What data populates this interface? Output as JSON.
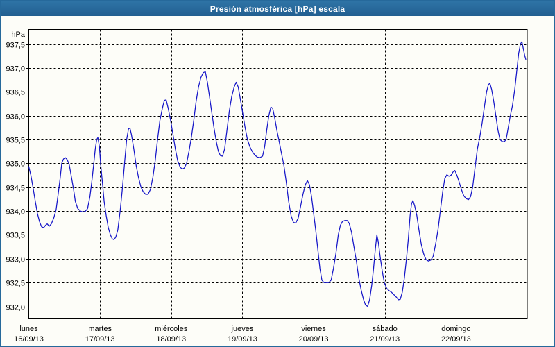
{
  "window": {
    "title": "Presión atmosférica [hPa] escala"
  },
  "colors": {
    "titlebar": "#26699b",
    "border": "#26699b",
    "line": "#1515c8",
    "grid": "#000000",
    "text": "#000000",
    "title_text": "#ffffff",
    "plot_bg": "#fdfdf8"
  },
  "chart_data": {
    "type": "line",
    "title": "Presión atmosférica [hPa] escala",
    "ylabel": "hPa",
    "y_unit_label": "hPa",
    "ylim": [
      931.76,
      937.81
    ],
    "x_range_hours": 168,
    "grid": true,
    "legend": "none",
    "y_ticks": [
      937.5,
      937.0,
      936.5,
      936.0,
      935.5,
      935.0,
      934.5,
      934.0,
      933.5,
      933.0,
      932.5,
      932.0
    ],
    "y_tick_labels": [
      "937,5",
      "937,0",
      "936,5",
      "936,0",
      "935,5",
      "935,0",
      "934,5",
      "934,0",
      "933,5",
      "933,0",
      "932,5",
      "932,0"
    ],
    "x_days": [
      {
        "name": "lunes",
        "date": "16/09/13"
      },
      {
        "name": "martes",
        "date": "17/09/13"
      },
      {
        "name": "miércoles",
        "date": "18/09/13"
      },
      {
        "name": "jueves",
        "date": "19/09/13"
      },
      {
        "name": "viernes",
        "date": "20/09/13"
      },
      {
        "name": "sábado",
        "date": "21/09/13"
      },
      {
        "name": "domingo",
        "date": "22/09/13"
      }
    ],
    "series": [
      {
        "name": "Presión atmosférica",
        "unit": "hPa",
        "points": [
          [
            0,
            934.93
          ],
          [
            0.7,
            934.75
          ],
          [
            1.4,
            934.5
          ],
          [
            2.2,
            934.2
          ],
          [
            2.9,
            933.95
          ],
          [
            3.6,
            933.78
          ],
          [
            4.3,
            933.67
          ],
          [
            5,
            933.65
          ],
          [
            5.6,
            933.7
          ],
          [
            6.2,
            933.73
          ],
          [
            6.9,
            933.68
          ],
          [
            7.6,
            933.73
          ],
          [
            8.4,
            933.85
          ],
          [
            9.2,
            934.02
          ],
          [
            9.9,
            934.35
          ],
          [
            10.6,
            934.7
          ],
          [
            11.1,
            935.0
          ],
          [
            11.7,
            935.09
          ],
          [
            12.3,
            935.12
          ],
          [
            12.9,
            935.08
          ],
          [
            13.6,
            934.98
          ],
          [
            14.4,
            934.7
          ],
          [
            15.1,
            934.45
          ],
          [
            15.7,
            934.2
          ],
          [
            16.5,
            934.05
          ],
          [
            17.4,
            934.0
          ],
          [
            18.2,
            933.98
          ],
          [
            19,
            933.99
          ],
          [
            19.8,
            934.05
          ],
          [
            20.6,
            934.3
          ],
          [
            21.3,
            934.65
          ],
          [
            21.9,
            935.0
          ],
          [
            22.4,
            935.3
          ],
          [
            22.9,
            935.5
          ],
          [
            23.3,
            935.54
          ],
          [
            23.8,
            935.35
          ],
          [
            24.2,
            935.0
          ],
          [
            24.8,
            934.6
          ],
          [
            25.4,
            934.2
          ],
          [
            26.1,
            933.9
          ],
          [
            26.8,
            933.65
          ],
          [
            27.5,
            933.5
          ],
          [
            28.1,
            933.42
          ],
          [
            28.7,
            933.4
          ],
          [
            29.3,
            933.45
          ],
          [
            30,
            933.6
          ],
          [
            30.8,
            934.0
          ],
          [
            31.6,
            934.5
          ],
          [
            32.4,
            935.1
          ],
          [
            33,
            935.5
          ],
          [
            33.6,
            935.72
          ],
          [
            34.1,
            935.74
          ],
          [
            34.6,
            935.6
          ],
          [
            35.4,
            935.3
          ],
          [
            36.2,
            934.95
          ],
          [
            37,
            934.7
          ],
          [
            37.8,
            934.5
          ],
          [
            38.6,
            934.4
          ],
          [
            39.4,
            934.35
          ],
          [
            40.2,
            934.35
          ],
          [
            41,
            934.45
          ],
          [
            41.8,
            934.7
          ],
          [
            42.6,
            935.05
          ],
          [
            43.4,
            935.5
          ],
          [
            44.2,
            935.9
          ],
          [
            45,
            936.15
          ],
          [
            45.7,
            936.32
          ],
          [
            46.3,
            936.33
          ],
          [
            47,
            936.15
          ],
          [
            47.8,
            935.9
          ],
          [
            48.6,
            935.6
          ],
          [
            49.4,
            935.3
          ],
          [
            50.2,
            935.05
          ],
          [
            51,
            934.92
          ],
          [
            51.7,
            934.88
          ],
          [
            52.4,
            934.9
          ],
          [
            53.2,
            935.0
          ],
          [
            54,
            935.25
          ],
          [
            54.8,
            935.55
          ],
          [
            55.6,
            935.9
          ],
          [
            56.4,
            936.3
          ],
          [
            57.2,
            936.6
          ],
          [
            58,
            936.8
          ],
          [
            58.8,
            936.9
          ],
          [
            59.5,
            936.92
          ],
          [
            60.2,
            936.7
          ],
          [
            60.9,
            936.4
          ],
          [
            61.6,
            936.1
          ],
          [
            62.4,
            935.75
          ],
          [
            63.2,
            935.45
          ],
          [
            63.9,
            935.25
          ],
          [
            64.6,
            935.16
          ],
          [
            65.3,
            935.15
          ],
          [
            66,
            935.3
          ],
          [
            66.8,
            935.7
          ],
          [
            67.6,
            936.1
          ],
          [
            68.4,
            936.4
          ],
          [
            69.2,
            936.6
          ],
          [
            69.9,
            936.7
          ],
          [
            70.6,
            936.6
          ],
          [
            71.3,
            936.35
          ],
          [
            72.1,
            936.05
          ],
          [
            72.9,
            935.75
          ],
          [
            73.7,
            935.5
          ],
          [
            74.5,
            935.35
          ],
          [
            75.3,
            935.25
          ],
          [
            76.1,
            935.18
          ],
          [
            77,
            935.13
          ],
          [
            77.9,
            935.12
          ],
          [
            78.8,
            935.15
          ],
          [
            79.5,
            935.35
          ],
          [
            80.2,
            935.7
          ],
          [
            80.9,
            936.0
          ],
          [
            81.6,
            936.18
          ],
          [
            82.2,
            936.15
          ],
          [
            82.9,
            935.95
          ],
          [
            83.6,
            935.7
          ],
          [
            84.4,
            935.45
          ],
          [
            85.2,
            935.2
          ],
          [
            86,
            934.95
          ],
          [
            86.8,
            934.6
          ],
          [
            87.6,
            934.2
          ],
          [
            88.4,
            933.9
          ],
          [
            89.2,
            933.76
          ],
          [
            90,
            933.75
          ],
          [
            90.8,
            933.85
          ],
          [
            91.6,
            934.1
          ],
          [
            92.4,
            934.35
          ],
          [
            93.2,
            934.55
          ],
          [
            93.9,
            934.64
          ],
          [
            94.6,
            934.55
          ],
          [
            95.3,
            934.3
          ],
          [
            96,
            933.95
          ],
          [
            96.7,
            933.6
          ],
          [
            97.4,
            933.2
          ],
          [
            98.1,
            932.8
          ],
          [
            98.8,
            932.55
          ],
          [
            99.5,
            932.5
          ],
          [
            100.3,
            932.5
          ],
          [
            101.1,
            932.5
          ],
          [
            101.9,
            932.55
          ],
          [
            102.7,
            932.8
          ],
          [
            103.5,
            933.1
          ],
          [
            104.3,
            933.5
          ],
          [
            105,
            933.7
          ],
          [
            105.7,
            933.78
          ],
          [
            106.5,
            933.8
          ],
          [
            107.3,
            933.8
          ],
          [
            108,
            933.74
          ],
          [
            108.8,
            933.55
          ],
          [
            109.6,
            933.25
          ],
          [
            110.4,
            932.95
          ],
          [
            111.2,
            932.6
          ],
          [
            112,
            932.35
          ],
          [
            112.8,
            932.15
          ],
          [
            113.5,
            932.03
          ],
          [
            114.2,
            932.0
          ],
          [
            114.9,
            932.15
          ],
          [
            115.6,
            932.45
          ],
          [
            116.2,
            932.8
          ],
          [
            116.8,
            933.2
          ],
          [
            117.3,
            933.5
          ],
          [
            117.8,
            933.35
          ],
          [
            118.4,
            933.05
          ],
          [
            119.1,
            932.75
          ],
          [
            119.8,
            932.5
          ],
          [
            120.6,
            932.38
          ],
          [
            121.4,
            932.33
          ],
          [
            122.2,
            932.3
          ],
          [
            123,
            932.25
          ],
          [
            123.8,
            932.2
          ],
          [
            124.6,
            932.14
          ],
          [
            125.2,
            932.15
          ],
          [
            125.9,
            932.3
          ],
          [
            126.6,
            932.6
          ],
          [
            127.3,
            933.0
          ],
          [
            127.9,
            933.4
          ],
          [
            128.5,
            933.9
          ],
          [
            129,
            934.15
          ],
          [
            129.5,
            934.22
          ],
          [
            130.1,
            934.1
          ],
          [
            130.8,
            933.9
          ],
          [
            131.5,
            933.6
          ],
          [
            132.3,
            933.3
          ],
          [
            133.1,
            933.1
          ],
          [
            133.9,
            932.98
          ],
          [
            134.7,
            932.95
          ],
          [
            135.5,
            932.97
          ],
          [
            136.3,
            933.05
          ],
          [
            137.1,
            933.3
          ],
          [
            137.9,
            933.6
          ],
          [
            138.7,
            934.0
          ],
          [
            139.5,
            934.4
          ],
          [
            140.2,
            934.68
          ],
          [
            140.9,
            934.76
          ],
          [
            141.6,
            934.73
          ],
          [
            142.3,
            934.75
          ],
          [
            143,
            934.82
          ],
          [
            143.6,
            934.85
          ],
          [
            144.3,
            934.75
          ],
          [
            145,
            934.62
          ],
          [
            145.8,
            934.45
          ],
          [
            146.6,
            934.32
          ],
          [
            147.4,
            934.26
          ],
          [
            148.2,
            934.24
          ],
          [
            148.9,
            934.3
          ],
          [
            149.6,
            934.5
          ],
          [
            150.4,
            934.9
          ],
          [
            151.2,
            935.3
          ],
          [
            152,
            935.55
          ],
          [
            152.8,
            935.85
          ],
          [
            153.6,
            936.2
          ],
          [
            154.3,
            936.5
          ],
          [
            154.9,
            936.65
          ],
          [
            155.4,
            936.68
          ],
          [
            156,
            936.55
          ],
          [
            156.7,
            936.3
          ],
          [
            157.4,
            936.0
          ],
          [
            158.1,
            935.7
          ],
          [
            158.8,
            935.5
          ],
          [
            159.5,
            935.46
          ],
          [
            160.2,
            935.45
          ],
          [
            160.9,
            935.5
          ],
          [
            161.6,
            935.75
          ],
          [
            162.3,
            936.0
          ],
          [
            163,
            936.2
          ],
          [
            163.8,
            936.55
          ],
          [
            164.5,
            936.95
          ],
          [
            165.1,
            937.3
          ],
          [
            165.7,
            937.5
          ],
          [
            166.2,
            937.55
          ],
          [
            166.7,
            937.4
          ],
          [
            167.1,
            937.27
          ],
          [
            167.5,
            937.18
          ]
        ]
      }
    ]
  }
}
